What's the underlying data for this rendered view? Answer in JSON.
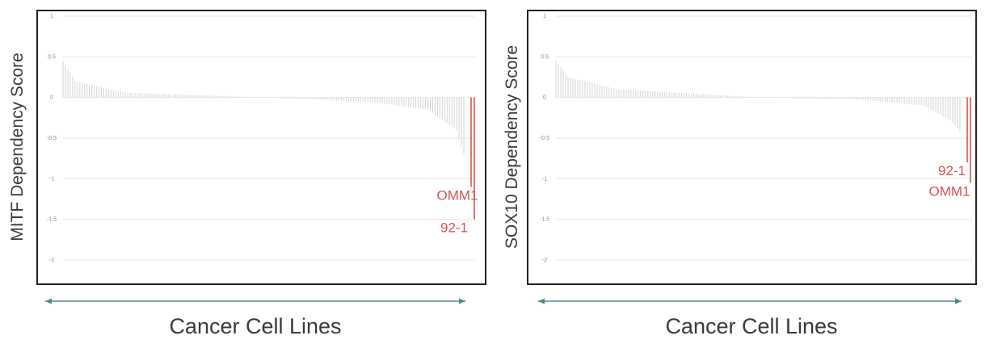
{
  "colors": {
    "bar": "#d4d4d4",
    "highlight": "#d9534f",
    "grid": "#e6e6e6",
    "frame": "#222222",
    "arrow": "#4a8a8c",
    "tick_text": "#8a8a8a",
    "label_text": "#3a3a3a"
  },
  "chart_data": [
    {
      "type": "bar",
      "ylabel": "MITF Dependency Score",
      "xlabel": "Cancer Cell Lines",
      "ylim": [
        -2.2,
        1.1
      ],
      "yticks": [
        1,
        0.5,
        0,
        -0.5,
        -1,
        -1.5,
        -2
      ],
      "ytick_labels": [
        "1",
        "0.5",
        "0",
        "-0.5",
        "-1",
        "-1.5",
        "-2"
      ],
      "grid": true,
      "n_bars": 170,
      "profile": [
        [
          0,
          0.45
        ],
        [
          0.03,
          0.2
        ],
        [
          0.15,
          0.06
        ],
        [
          0.5,
          0.0
        ],
        [
          0.75,
          -0.05
        ],
        [
          0.9,
          -0.15
        ],
        [
          0.97,
          -0.4
        ],
        [
          1,
          -0.9
        ]
      ],
      "highlights": [
        {
          "label": "OMM1",
          "value": -1.1
        },
        {
          "label": "92-1",
          "value": -1.5
        }
      ]
    },
    {
      "type": "bar",
      "ylabel": "SOX10 Dependency Score",
      "xlabel": "Cancer Cell Lines",
      "ylim": [
        -2.2,
        1.1
      ],
      "yticks": [
        1,
        0.5,
        0,
        -0.5,
        -1,
        -1.5,
        -2
      ],
      "ytick_labels": [
        "1",
        "0.5",
        "0",
        "-0.5",
        "-1",
        "-1.5",
        "-2"
      ],
      "grid": true,
      "n_bars": 170,
      "profile": [
        [
          0,
          0.45
        ],
        [
          0.03,
          0.25
        ],
        [
          0.15,
          0.1
        ],
        [
          0.5,
          0.0
        ],
        [
          0.75,
          -0.03
        ],
        [
          0.9,
          -0.1
        ],
        [
          0.97,
          -0.3
        ],
        [
          1,
          -0.5
        ]
      ],
      "highlights": [
        {
          "label": "92-1",
          "value": -0.8
        },
        {
          "label": "OMM1",
          "value": -1.05
        }
      ]
    }
  ]
}
